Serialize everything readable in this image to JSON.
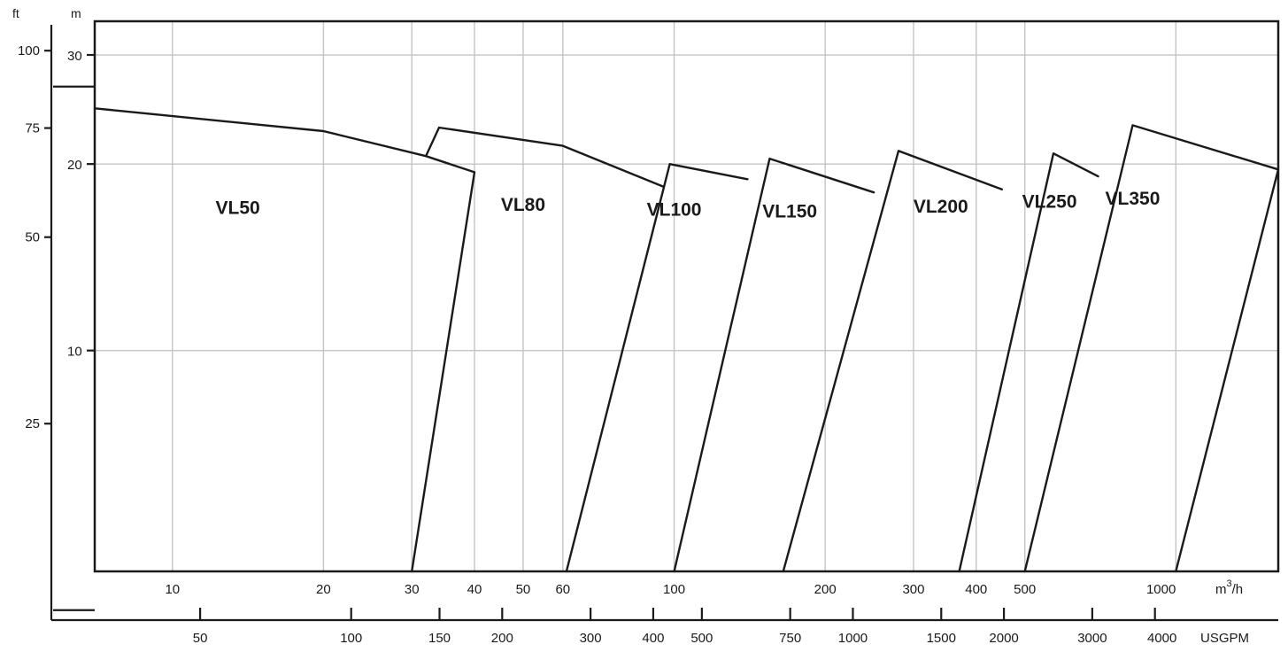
{
  "chart_data": {
    "type": "line",
    "title": "",
    "x_axes": {
      "flow_m3h": {
        "label": "m³/h",
        "scale": "log",
        "ticks": [
          {
            "value": 10,
            "label": "10"
          },
          {
            "value": 20,
            "label": "20"
          },
          {
            "value": 30,
            "label": "30"
          },
          {
            "value": 40,
            "label": "40"
          },
          {
            "value": 50,
            "label": "50"
          },
          {
            "value": 60,
            "label": "60"
          },
          {
            "value": 100,
            "label": "100"
          },
          {
            "value": 200,
            "label": "200"
          },
          {
            "value": 300,
            "label": "300"
          },
          {
            "value": 400,
            "label": "400"
          },
          {
            "value": 500,
            "label": "500"
          },
          {
            "value": 1000,
            "label": "1000"
          }
        ],
        "range": [
          7,
          1600
        ]
      },
      "flow_usgpm": {
        "label": "USGPM",
        "scale": "log",
        "ticks": [
          {
            "value": 50,
            "label": "50"
          },
          {
            "value": 100,
            "label": "100"
          },
          {
            "value": 150,
            "label": "150"
          },
          {
            "value": 200,
            "label": "200"
          },
          {
            "value": 300,
            "label": "300"
          },
          {
            "value": 400,
            "label": "400"
          },
          {
            "value": 500,
            "label": "500"
          },
          {
            "value": 750,
            "label": "750"
          },
          {
            "value": 1000,
            "label": "1000"
          },
          {
            "value": 1500,
            "label": "1500"
          },
          {
            "value": 2000,
            "label": "2000"
          },
          {
            "value": 3000,
            "label": "3000"
          },
          {
            "value": 4000,
            "label": "4000"
          }
        ]
      }
    },
    "y_axes": {
      "head_m": {
        "label": "m",
        "scale": "log",
        "ticks": [
          {
            "value": 10,
            "label": "10"
          },
          {
            "value": 20,
            "label": "20"
          },
          {
            "value": 30,
            "label": "30"
          }
        ],
        "range": [
          4.4,
          34
        ]
      },
      "head_ft": {
        "label": "ft",
        "ticks": [
          {
            "value": 25,
            "label": "25"
          },
          {
            "value": 50,
            "label": "50"
          },
          {
            "value": 75,
            "label": "75"
          },
          {
            "value": 100,
            "label": "100"
          }
        ],
        "minor_ticks": [
          12.5,
          87.5
        ]
      }
    },
    "grid": true,
    "series": [
      {
        "name": "VL50",
        "label_at": [
          13.5,
          16.6
        ],
        "points": [
          [
            7,
            24.6
          ],
          [
            20,
            22.6
          ],
          [
            32,
            20.6
          ],
          [
            40,
            19.4
          ],
          [
            30,
            4.4
          ]
        ]
      },
      {
        "name": "VL80",
        "label_at": [
          50,
          16.8
        ],
        "points": [
          [
            32,
            20.6
          ],
          [
            34,
            22.9
          ],
          [
            60,
            21.4
          ],
          [
            95,
            18.4
          ]
        ]
      },
      {
        "name": "VL100",
        "label_at": [
          100,
          16.5
        ],
        "points": [
          [
            61,
            4.4
          ],
          [
            98,
            20.0
          ],
          [
            140,
            18.9
          ]
        ]
      },
      {
        "name": "VL150",
        "label_at": [
          170,
          16.4
        ],
        "points": [
          [
            100,
            4.4
          ],
          [
            155,
            20.4
          ],
          [
            250,
            18.0
          ]
        ]
      },
      {
        "name": "VL200",
        "label_at": [
          340,
          16.7
        ],
        "points": [
          [
            165,
            4.4
          ],
          [
            280,
            21.0
          ],
          [
            450,
            18.2
          ]
        ]
      },
      {
        "name": "VL250",
        "label_at": [
          560,
          17.0
        ],
        "points": [
          [
            370,
            4.4
          ],
          [
            570,
            20.8
          ],
          [
            700,
            19.1
          ]
        ]
      },
      {
        "name": "VL350",
        "label_at": [
          820,
          17.2
        ],
        "points": [
          [
            500,
            4.4
          ],
          [
            820,
            23.1
          ],
          [
            1600,
            19.6
          ],
          [
            1000,
            4.4
          ]
        ]
      }
    ]
  }
}
